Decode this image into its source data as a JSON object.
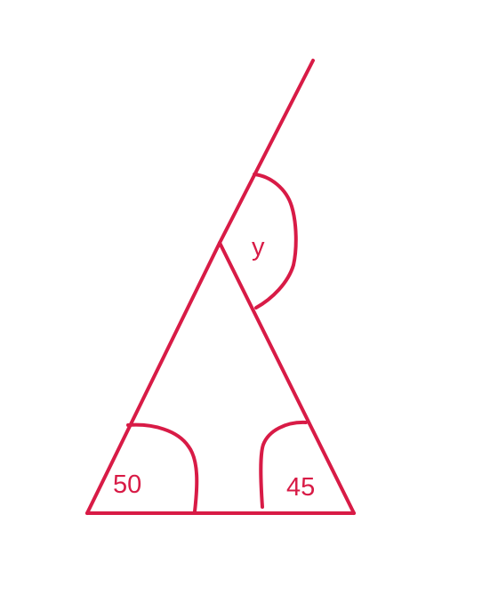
{
  "diagram": {
    "stroke_color": "#d81b46",
    "labels": {
      "angle_y": "y",
      "angle_left": "50",
      "angle_right": "45"
    }
  }
}
